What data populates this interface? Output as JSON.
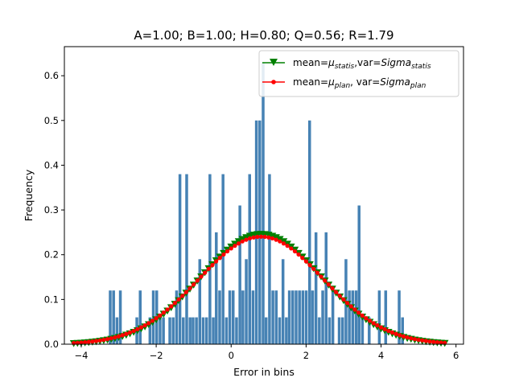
{
  "chart_data": {
    "type": "bar",
    "title": "A=1.00; B=1.00; H=0.80; Q=0.56; R=1.79",
    "xlabel": "Error in bins",
    "ylabel": "Frequency",
    "xlim": [
      -4.45,
      6.2
    ],
    "ylim": [
      0,
      0.665
    ],
    "xticks": [
      -4,
      -2,
      0,
      2,
      4,
      6
    ],
    "yticks": [
      0.0,
      0.1,
      0.2,
      0.3,
      0.4,
      0.5,
      0.6
    ],
    "xtick_labels": [
      "−4",
      "−2",
      "0",
      "2",
      "4",
      "6"
    ],
    "ytick_labels": [
      "0.0",
      "0.1",
      "0.2",
      "0.3",
      "0.4",
      "0.5",
      "0.6"
    ],
    "grid": false,
    "legend_position": "top-right",
    "histogram": {
      "color": "#4682b4",
      "bin_width": 0.088,
      "bin_centers": [
        -3.22,
        -3.13,
        -3.04,
        -2.95,
        -2.51,
        -2.42,
        -2.16,
        -2.07,
        -1.98,
        -1.89,
        -1.8,
        -1.63,
        -1.54,
        -1.45,
        -1.36,
        -1.27,
        -1.18,
        -1.09,
        -1.01,
        -0.92,
        -0.83,
        -0.74,
        -0.65,
        -0.56,
        -0.47,
        -0.39,
        -0.3,
        -0.21,
        -0.12,
        -0.03,
        0.06,
        0.15,
        0.24,
        0.32,
        0.41,
        0.5,
        0.59,
        0.68,
        0.77,
        0.86,
        0.94,
        1.03,
        1.12,
        1.21,
        1.3,
        1.39,
        1.48,
        1.56,
        1.65,
        1.74,
        1.83,
        1.92,
        2.01,
        2.1,
        2.18,
        2.27,
        2.36,
        2.45,
        2.54,
        2.63,
        2.72,
        2.89,
        2.98,
        3.07,
        3.16,
        3.25,
        3.34,
        3.42,
        3.51,
        3.69,
        3.96,
        4.13,
        4.49,
        4.58
      ],
      "frequencies": [
        0.12,
        0.12,
        0.06,
        0.12,
        0.06,
        0.12,
        0.06,
        0.12,
        0.12,
        0.06,
        0.06,
        0.06,
        0.06,
        0.12,
        0.38,
        0.06,
        0.38,
        0.06,
        0.06,
        0.06,
        0.19,
        0.06,
        0.06,
        0.38,
        0.06,
        0.25,
        0.12,
        0.38,
        0.06,
        0.12,
        0.12,
        0.06,
        0.31,
        0.12,
        0.19,
        0.38,
        0.12,
        0.5,
        0.5,
        0.63,
        0.06,
        0.38,
        0.12,
        0.12,
        0.06,
        0.19,
        0.06,
        0.12,
        0.12,
        0.12,
        0.12,
        0.12,
        0.12,
        0.5,
        0.12,
        0.25,
        0.06,
        0.12,
        0.25,
        0.06,
        0.12,
        0.06,
        0.06,
        0.19,
        0.12,
        0.12,
        0.12,
        0.31,
        0.06,
        0.06,
        0.12,
        0.12,
        0.12,
        0.06
      ]
    },
    "series": [
      {
        "name": "mean=μstatis,var=Sigmastatis",
        "color": "#008000",
        "marker": "triangle-down",
        "mean": 0.8,
        "std": 1.62,
        "x_start": -4.2,
        "x_end": 5.7
      },
      {
        "name": "mean=μplan, var=Sigmaplan",
        "color": "#ff0000",
        "marker": "circle",
        "mean": 0.8,
        "std": 1.66,
        "x_start": -4.2,
        "x_end": 5.7
      }
    ]
  },
  "legend": {
    "entry1": {
      "prefix": "mean=",
      "mu": "μ",
      "mu_sub": "statis",
      "mid": ",var=",
      "sig": "Sigma",
      "sig_sub": "statis"
    },
    "entry2": {
      "prefix": "mean=",
      "mu": "μ",
      "mu_sub": "plan",
      "mid": ", var=",
      "sig": "Sigma",
      "sig_sub": "plan"
    }
  }
}
